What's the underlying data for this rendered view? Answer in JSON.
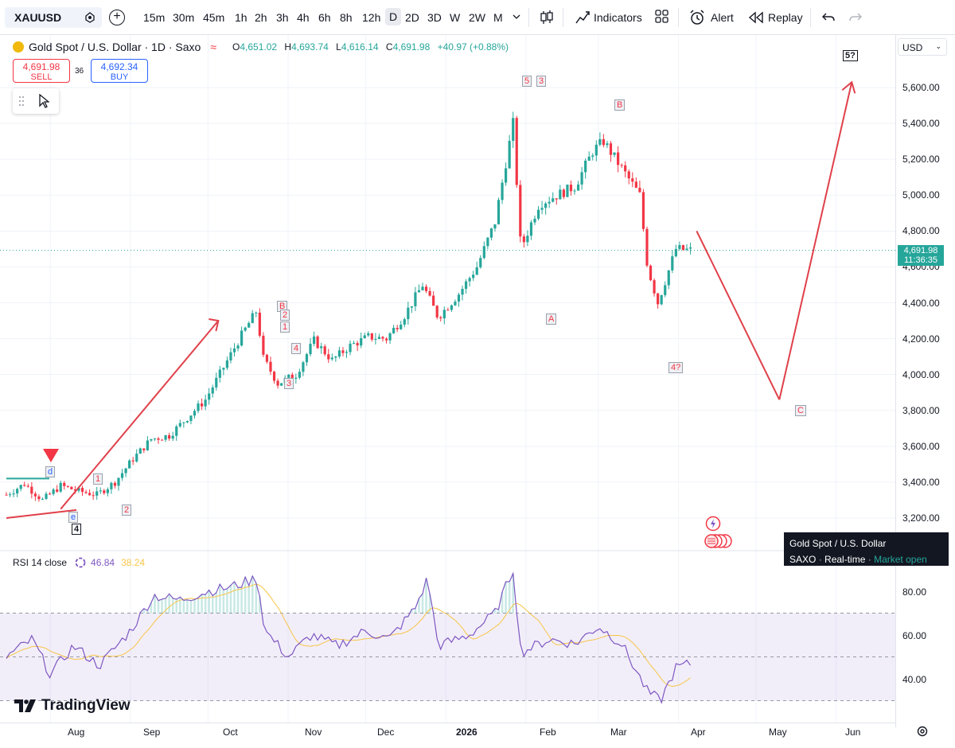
{
  "toolbar": {
    "symbol": "XAUUSD",
    "timeframes": [
      "15m",
      "30m",
      "45m",
      "1h",
      "2h",
      "3h",
      "4h",
      "6h",
      "8h",
      "12h",
      "D",
      "2D",
      "3D",
      "W",
      "2W",
      "M"
    ],
    "active_timeframe": "D",
    "indicators_label": "Indicators",
    "alert_label": "Alert",
    "replay_label": "Replay"
  },
  "legend": {
    "title": "Gold Spot / U.S. Dollar · 1D · Saxo",
    "o_label": "O",
    "o_value": "4,651.02",
    "h_label": "H",
    "h_value": "4,693.74",
    "l_label": "L",
    "l_value": "4,616.14",
    "c_label": "C",
    "c_value": "4,691.98",
    "change": "+40.97 (+0.88%)",
    "sell_price": "4,691.98",
    "sell_label": "SELL",
    "buy_price": "4,692.34",
    "buy_label": "BUY",
    "spread": "36"
  },
  "price_axis": {
    "currency": "USD",
    "labels": [
      "5,600.00",
      "5,400.00",
      "5,200.00",
      "5,000.00",
      "4,800.00",
      "4,600.00",
      "4,400.00",
      "4,200.00",
      "4,000.00",
      "3,800.00",
      "3,600.00",
      "3,400.00",
      "3,200.00"
    ],
    "current_price": "4,691.98",
    "countdown": "11:36:35"
  },
  "time_axis": {
    "labels": [
      "Aug",
      "Sep",
      "Oct",
      "Nov",
      "Dec",
      "2026",
      "Feb",
      "Mar",
      "Apr",
      "May",
      "Jun"
    ]
  },
  "rsi": {
    "title": "RSI 14 close",
    "rsi_value": "46.84",
    "ma_value": "38.24",
    "axis_labels": [
      "80.00",
      "60.00",
      "40.00"
    ]
  },
  "tooltip": {
    "name": "Gold Spot / U.S. Dollar",
    "source": "SAXO",
    "type": "Real-time",
    "status": "Market open"
  },
  "watermark": "TradingView",
  "wave_labels": {
    "d": "d",
    "e": "e",
    "four_a": "4",
    "one": "1",
    "two": "2",
    "b_top": "B",
    "two_b": "2",
    "one_b": "1",
    "four_b": "4",
    "three_b": "3",
    "five": "5",
    "three_peak": "3",
    "a": "A",
    "b": "B",
    "four_q": "4?",
    "c": "C",
    "five_q": "5?"
  },
  "colors": {
    "up": "#26a69a",
    "down": "#f23645",
    "rsi_line": "#7e57c2",
    "rsi_ma": "#f7c548",
    "arrow": "#e0404a"
  },
  "chart_data": {
    "type": "candlestick",
    "x_range": [
      "2025-07-15",
      "2026-06-10"
    ],
    "ylim": [
      3100,
      5700
    ],
    "closes": [
      [
        "2025-07-15",
        3330
      ],
      [
        "2025-07-22",
        3390
      ],
      [
        "2025-07-29",
        3300
      ],
      [
        "2025-08-05",
        3380
      ],
      [
        "2025-08-12",
        3350
      ],
      [
        "2025-08-19",
        3330
      ],
      [
        "2025-08-26",
        3400
      ],
      [
        "2025-09-02",
        3530
      ],
      [
        "2025-09-09",
        3640
      ],
      [
        "2025-09-16",
        3660
      ],
      [
        "2025-09-23",
        3760
      ],
      [
        "2025-09-30",
        3860
      ],
      [
        "2025-10-07",
        4040
      ],
      [
        "2025-10-14",
        4220
      ],
      [
        "2025-10-20",
        4360
      ],
      [
        "2025-10-22",
        4100
      ],
      [
        "2025-10-28",
        3950
      ],
      [
        "2025-11-04",
        4000
      ],
      [
        "2025-11-11",
        4190
      ],
      [
        "2025-11-18",
        4080
      ],
      [
        "2025-11-25",
        4160
      ],
      [
        "2025-12-02",
        4210
      ],
      [
        "2025-12-09",
        4200
      ],
      [
        "2025-12-16",
        4330
      ],
      [
        "2025-12-23",
        4500
      ],
      [
        "2025-12-29",
        4320
      ],
      [
        "2026-01-06",
        4450
      ],
      [
        "2026-01-13",
        4600
      ],
      [
        "2026-01-20",
        4850
      ],
      [
        "2026-01-27",
        5400
      ],
      [
        "2026-01-30",
        4700
      ],
      [
        "2026-02-06",
        4950
      ],
      [
        "2026-02-13",
        5000
      ],
      [
        "2026-02-20",
        5050
      ],
      [
        "2026-02-27",
        5250
      ],
      [
        "2026-03-03",
        5300
      ],
      [
        "2026-03-10",
        5150
      ],
      [
        "2026-03-17",
        5000
      ],
      [
        "2026-03-20",
        4600
      ],
      [
        "2026-03-24",
        4400
      ],
      [
        "2026-03-31",
        4700
      ],
      [
        "2026-04-06",
        4692
      ]
    ],
    "projection": [
      [
        "2026-04-08",
        4800
      ],
      [
        "2026-05-10",
        3860
      ],
      [
        "2026-06-07",
        5630
      ]
    ],
    "rsi": {
      "ylim": [
        20,
        100
      ],
      "levels": [
        70,
        50,
        30
      ],
      "values": [
        [
          "2025-07-15",
          50
        ],
        [
          "2025-07-25",
          58
        ],
        [
          "2025-08-01",
          42
        ],
        [
          "2025-08-10",
          55
        ],
        [
          "2025-08-20",
          46
        ],
        [
          "2025-09-01",
          62
        ],
        [
          "2025-09-10",
          78
        ],
        [
          "2025-09-20",
          76
        ],
        [
          "2025-10-01",
          80
        ],
        [
          "2025-10-10",
          82
        ],
        [
          "2025-10-20",
          86
        ],
        [
          "2025-10-23",
          62
        ],
        [
          "2025-11-01",
          50
        ],
        [
          "2025-11-10",
          60
        ],
        [
          "2025-11-20",
          55
        ],
        [
          "2025-12-01",
          62
        ],
        [
          "2025-12-10",
          58
        ],
        [
          "2025-12-20",
          72
        ],
        [
          "2025-12-25",
          86
        ],
        [
          "2025-12-29",
          55
        ],
        [
          "2026-01-10",
          60
        ],
        [
          "2026-01-20",
          70
        ],
        [
          "2026-01-27",
          90
        ],
        [
          "2026-01-30",
          52
        ],
        [
          "2026-02-10",
          58
        ],
        [
          "2026-02-20",
          56
        ],
        [
          "2026-03-01",
          64
        ],
        [
          "2026-03-10",
          56
        ],
        [
          "2026-03-20",
          34
        ],
        [
          "2026-03-25",
          30
        ],
        [
          "2026-03-31",
          45
        ],
        [
          "2026-04-06",
          47
        ]
      ]
    }
  }
}
